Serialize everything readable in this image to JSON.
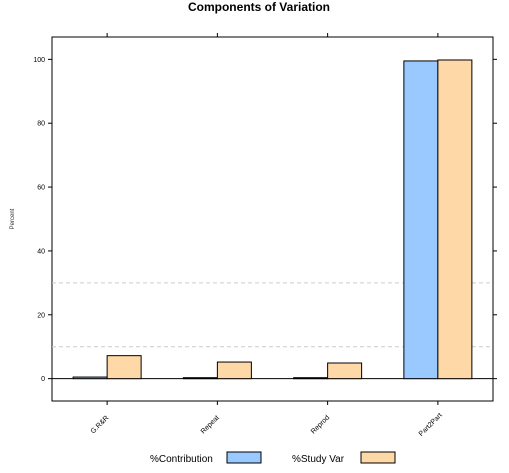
{
  "chart_data": {
    "type": "bar",
    "title": "Components of Variation",
    "xlabel": "",
    "ylabel": "Percent",
    "categories": [
      "G.R&R",
      "Repeat",
      "Reprod",
      "Part2Part"
    ],
    "series": [
      {
        "name": "%Contribution",
        "color": "#99c9ff",
        "values": [
          0.5,
          0.3,
          0.3,
          99.5
        ]
      },
      {
        "name": "%Study Var",
        "color": "#ffd8a8",
        "values": [
          7.2,
          5.2,
          4.9,
          99.8
        ]
      }
    ],
    "ylim": [
      -7,
      107
    ],
    "yticks": [
      0,
      20,
      40,
      60,
      80,
      100
    ],
    "reference_lines": [
      10,
      30
    ],
    "grid": false,
    "legend_position": "bottom"
  }
}
